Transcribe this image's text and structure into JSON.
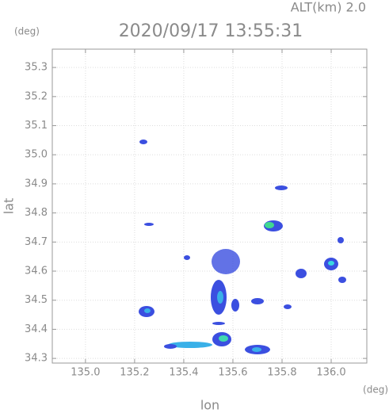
{
  "chart_data": {
    "type": "radar-map",
    "title": "2020/09/17 13:55:31",
    "altitude_label": "ALT(km)  2.0",
    "y_unit": "(deg)",
    "x_unit": "(deg)",
    "xlabel": "lon",
    "ylabel": "lat",
    "xlim": [
      134.865,
      136.145
    ],
    "ylim": [
      34.284,
      35.363
    ],
    "xticks": [
      {
        "value": 135,
        "label": "135.0"
      },
      135.2,
      135.4,
      135.6,
      135.8,
      {
        "value": 136,
        "label": "136.0"
      }
    ],
    "yticks": [
      34.3,
      34.4,
      34.5,
      34.6,
      34.7,
      34.8,
      34.9,
      {
        "value": 35,
        "label": "35.0"
      },
      35.1,
      35.2,
      35.3
    ],
    "grid": true
  }
}
